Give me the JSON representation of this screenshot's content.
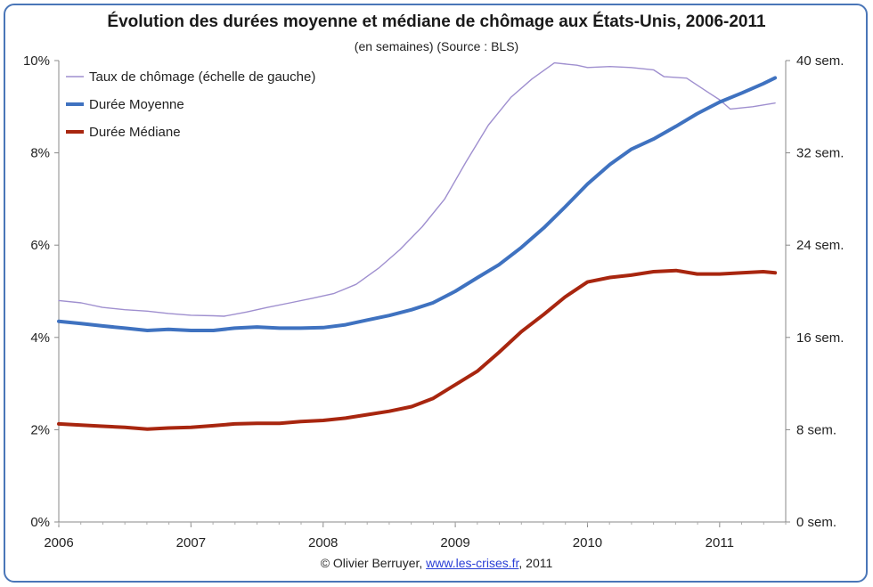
{
  "title": "Évolution des durées moyenne et médiane de chômage aux États-Unis, 2006-2011",
  "subtitle": "(en semaines) (Source : BLS)",
  "credit": {
    "prefix": "© Olivier Berruyer,",
    "link": "www.les-crises.fr",
    "suffix": ", 2011"
  },
  "chart_data": {
    "type": "line",
    "x_ticks": [
      "2006",
      "2007",
      "2008",
      "2009",
      "2010",
      "2011"
    ],
    "y_left_ticks": [
      "0%",
      "2%",
      "4%",
      "6%",
      "8%",
      "10%"
    ],
    "y_right_ticks": [
      "0 sem.",
      "8 sem.",
      "16 sem.",
      "24 sem.",
      "32 sem.",
      "40 sem."
    ],
    "y_left_range": [
      0,
      10
    ],
    "y_right_range": [
      0,
      40
    ],
    "x_range": [
      2006.0,
      2011.5
    ],
    "grid": false,
    "legend_position": "top-left",
    "series": [
      {
        "name": "Taux de chômage (échelle de gauche)",
        "axis": "left",
        "color": "#9f8fcf",
        "width": 1.4,
        "points": [
          [
            2006.0,
            4.8
          ],
          [
            2006.17,
            4.75
          ],
          [
            2006.33,
            4.65
          ],
          [
            2006.5,
            4.6
          ],
          [
            2006.67,
            4.57
          ],
          [
            2006.83,
            4.52
          ],
          [
            2007.0,
            4.48
          ],
          [
            2007.17,
            4.47
          ],
          [
            2007.25,
            4.46
          ],
          [
            2007.42,
            4.55
          ],
          [
            2007.58,
            4.65
          ],
          [
            2007.75,
            4.75
          ],
          [
            2007.92,
            4.85
          ],
          [
            2008.08,
            4.95
          ],
          [
            2008.25,
            5.15
          ],
          [
            2008.42,
            5.5
          ],
          [
            2008.58,
            5.9
          ],
          [
            2008.75,
            6.4
          ],
          [
            2008.92,
            7.0
          ],
          [
            2009.08,
            7.8
          ],
          [
            2009.25,
            8.6
          ],
          [
            2009.42,
            9.2
          ],
          [
            2009.58,
            9.6
          ],
          [
            2009.75,
            9.95
          ],
          [
            2009.92,
            9.9
          ],
          [
            2010.0,
            9.85
          ],
          [
            2010.17,
            9.87
          ],
          [
            2010.33,
            9.85
          ],
          [
            2010.5,
            9.8
          ],
          [
            2010.58,
            9.65
          ],
          [
            2010.75,
            9.62
          ],
          [
            2010.92,
            9.3
          ],
          [
            2011.0,
            9.15
          ],
          [
            2011.08,
            8.95
          ],
          [
            2011.25,
            9.0
          ],
          [
            2011.42,
            9.08
          ]
        ]
      },
      {
        "name": "Durée Moyenne",
        "axis": "right",
        "color": "#3f72c0",
        "width": 4,
        "points": [
          [
            2006.0,
            17.4
          ],
          [
            2006.17,
            17.2
          ],
          [
            2006.33,
            17.0
          ],
          [
            2006.5,
            16.8
          ],
          [
            2006.67,
            16.6
          ],
          [
            2006.83,
            16.7
          ],
          [
            2007.0,
            16.6
          ],
          [
            2007.17,
            16.6
          ],
          [
            2007.33,
            16.8
          ],
          [
            2007.5,
            16.9
          ],
          [
            2007.67,
            16.8
          ],
          [
            2007.83,
            16.8
          ],
          [
            2008.0,
            16.85
          ],
          [
            2008.17,
            17.1
          ],
          [
            2008.33,
            17.5
          ],
          [
            2008.5,
            17.9
          ],
          [
            2008.67,
            18.4
          ],
          [
            2008.83,
            19.0
          ],
          [
            2009.0,
            20.0
          ],
          [
            2009.17,
            21.2
          ],
          [
            2009.33,
            22.3
          ],
          [
            2009.5,
            23.8
          ],
          [
            2009.67,
            25.5
          ],
          [
            2009.83,
            27.3
          ],
          [
            2010.0,
            29.3
          ],
          [
            2010.17,
            31.0
          ],
          [
            2010.33,
            32.3
          ],
          [
            2010.5,
            33.2
          ],
          [
            2010.67,
            34.3
          ],
          [
            2010.83,
            35.4
          ],
          [
            2011.0,
            36.4
          ],
          [
            2011.17,
            37.2
          ],
          [
            2011.33,
            38.0
          ],
          [
            2011.42,
            38.5
          ]
        ]
      },
      {
        "name": "Durée Médiane",
        "axis": "right",
        "color": "#a8260f",
        "width": 4,
        "points": [
          [
            2006.0,
            8.5
          ],
          [
            2006.17,
            8.4
          ],
          [
            2006.33,
            8.3
          ],
          [
            2006.5,
            8.2
          ],
          [
            2006.67,
            8.05
          ],
          [
            2006.83,
            8.15
          ],
          [
            2007.0,
            8.2
          ],
          [
            2007.17,
            8.35
          ],
          [
            2007.33,
            8.5
          ],
          [
            2007.5,
            8.55
          ],
          [
            2007.67,
            8.55
          ],
          [
            2007.83,
            8.7
          ],
          [
            2008.0,
            8.8
          ],
          [
            2008.17,
            9.0
          ],
          [
            2008.33,
            9.3
          ],
          [
            2008.5,
            9.6
          ],
          [
            2008.67,
            10.0
          ],
          [
            2008.83,
            10.7
          ],
          [
            2009.0,
            11.9
          ],
          [
            2009.17,
            13.1
          ],
          [
            2009.33,
            14.7
          ],
          [
            2009.5,
            16.5
          ],
          [
            2009.67,
            18.0
          ],
          [
            2009.83,
            19.5
          ],
          [
            2010.0,
            20.8
          ],
          [
            2010.17,
            21.2
          ],
          [
            2010.33,
            21.4
          ],
          [
            2010.5,
            21.7
          ],
          [
            2010.67,
            21.8
          ],
          [
            2010.83,
            21.5
          ],
          [
            2011.0,
            21.5
          ],
          [
            2011.17,
            21.6
          ],
          [
            2011.33,
            21.7
          ],
          [
            2011.42,
            21.6
          ]
        ]
      }
    ]
  }
}
